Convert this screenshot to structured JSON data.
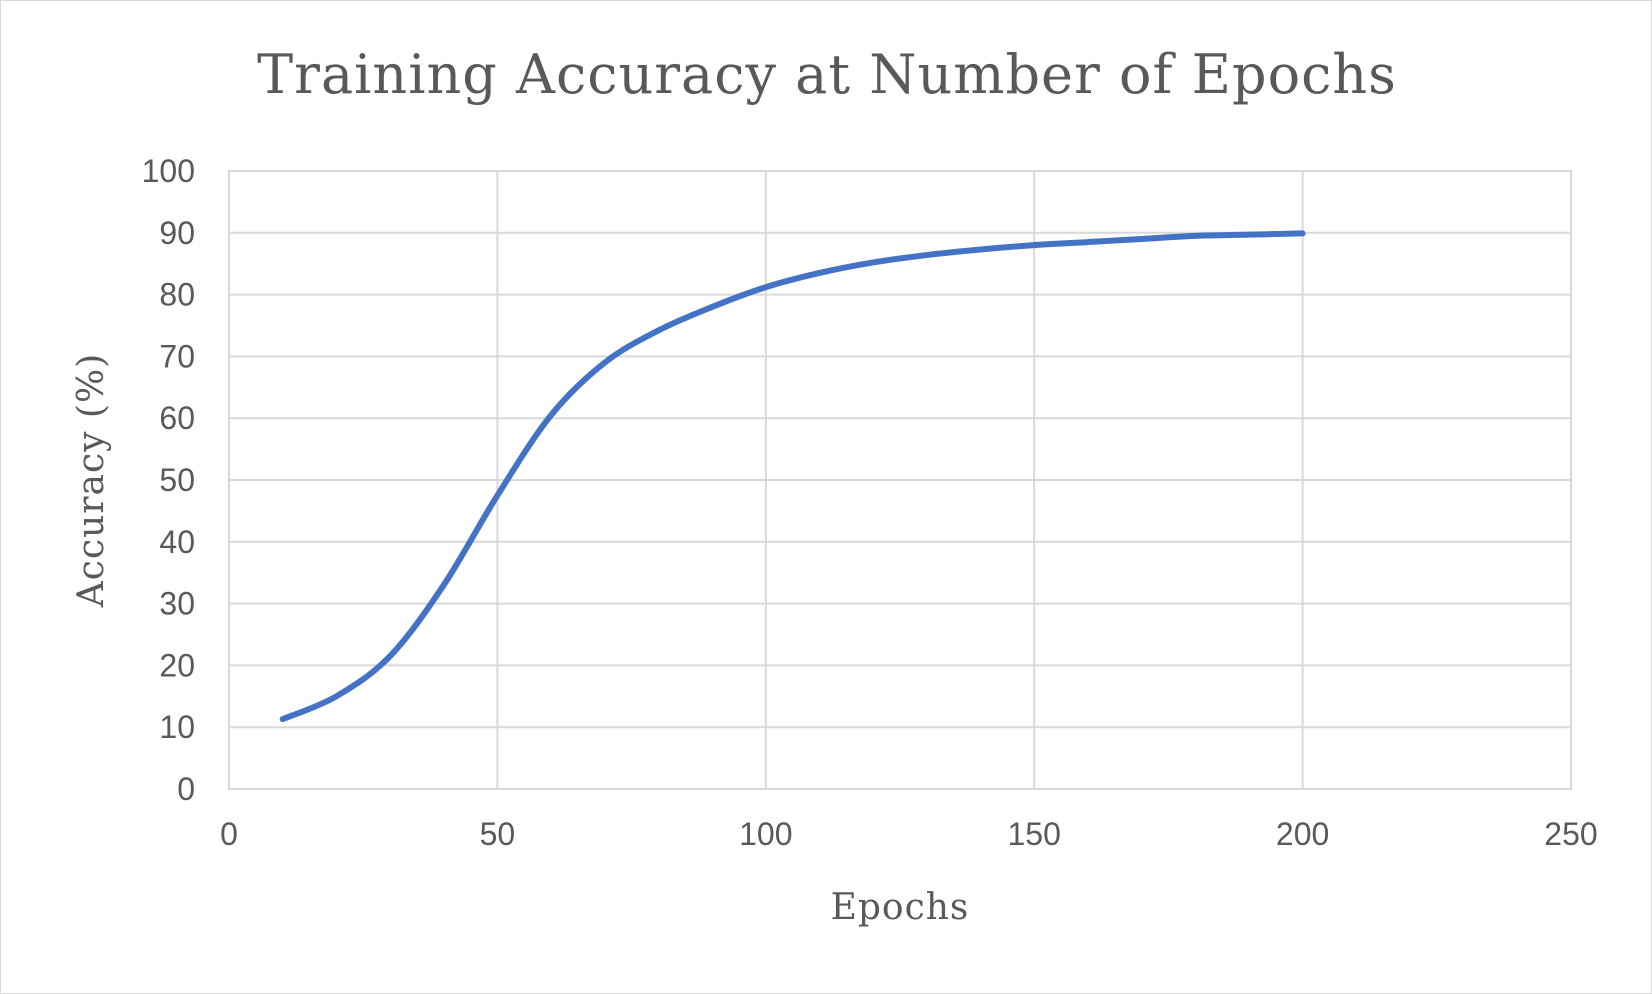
{
  "chart_data": {
    "type": "line",
    "title": "Training Accuracy at Number of Epochs",
    "xlabel": "Epochs",
    "ylabel": "Accuracy (%)",
    "xlim": [
      0,
      250
    ],
    "ylim": [
      0,
      100
    ],
    "x_ticks": [
      "0",
      "50",
      "100",
      "150",
      "200",
      "250"
    ],
    "y_ticks": [
      "0",
      "10",
      "20",
      "30",
      "40",
      "50",
      "60",
      "70",
      "80",
      "90",
      "100"
    ],
    "grid": true,
    "series": [
      {
        "color": "#4472c4",
        "x": [
          10,
          20,
          30,
          40,
          50,
          60,
          70,
          80,
          90,
          100,
          110,
          120,
          130,
          140,
          150,
          160,
          170,
          180,
          190,
          200
        ],
        "y": [
          11.3,
          15,
          21.5,
          33,
          47.5,
          60.5,
          69,
          74.2,
          78,
          81.2,
          83.5,
          85.2,
          86.4,
          87.3,
          88,
          88.5,
          89,
          89.5,
          89.7,
          89.9
        ]
      }
    ]
  }
}
